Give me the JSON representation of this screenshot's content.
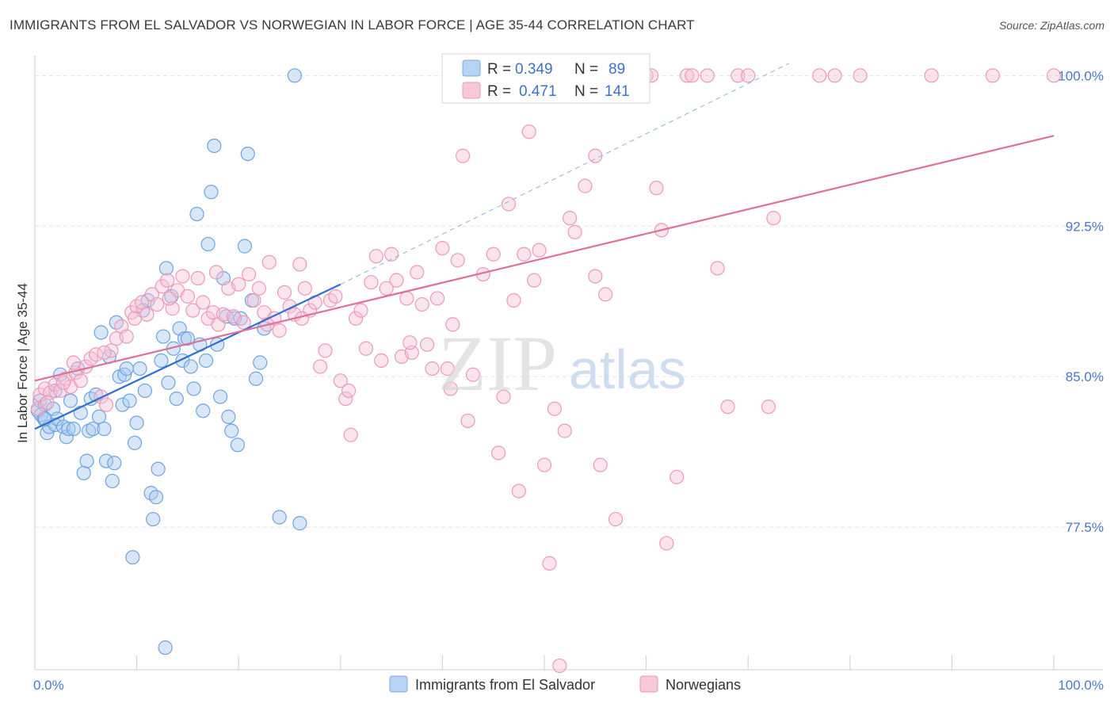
{
  "chart_data": {
    "type": "scatter",
    "title": "IMMIGRANTS FROM EL SALVADOR VS NORWEGIAN IN LABOR FORCE | AGE 35-44 CORRELATION CHART",
    "source": "Source: ZipAtlas.com",
    "xlabel": "",
    "ylabel": "In Labor Force | Age 35-44",
    "xlim": [
      0,
      100
    ],
    "ylim": [
      70.4,
      101.0
    ],
    "x_tick_labels": [
      "0.0%",
      "100.0%"
    ],
    "y_ticks": [
      77.5,
      85.0,
      92.5,
      100.0
    ],
    "y_tick_labels": [
      "77.5%",
      "85.0%",
      "92.5%",
      "100.0%"
    ],
    "grid": true,
    "watermark": "ZIPatlas",
    "stats": [
      {
        "series": "Immigrants from El Salvador",
        "r_label": "R =",
        "r": "0.349",
        "n_label": "N =",
        "n": "89"
      },
      {
        "series": "Norwegians",
        "r_label": "R =",
        "r": "0.471",
        "n_label": "N =",
        "n": "141"
      }
    ],
    "series": [
      {
        "name": "Immigrants from El Salvador",
        "color": "#6fa3e0",
        "fill": "#a9c9f0",
        "trend_color": "#2f6fd0",
        "trend": {
          "x0": 0,
          "y0": 82.4,
          "x1": 30,
          "y1": 89.6,
          "dashed_to_x": 74,
          "dashed_to_y": 100.6
        },
        "points": [
          [
            0.3,
            83.3
          ],
          [
            0.5,
            83.8
          ],
          [
            0.6,
            83.1
          ],
          [
            0.9,
            82.9
          ],
          [
            1.0,
            83.6
          ],
          [
            1.2,
            82.2
          ],
          [
            1.4,
            82.5
          ],
          [
            1.8,
            83.4
          ],
          [
            2.0,
            82.6
          ],
          [
            2.2,
            82.9
          ],
          [
            2.5,
            85.1
          ],
          [
            2.8,
            82.5
          ],
          [
            3.1,
            82.0
          ],
          [
            3.3,
            82.4
          ],
          [
            3.5,
            83.8
          ],
          [
            3.8,
            82.4
          ],
          [
            4.2,
            85.4
          ],
          [
            4.5,
            83.2
          ],
          [
            4.8,
            80.2
          ],
          [
            5.1,
            80.8
          ],
          [
            5.3,
            82.3
          ],
          [
            5.5,
            83.9
          ],
          [
            5.7,
            82.4
          ],
          [
            6.0,
            84.1
          ],
          [
            6.3,
            83.0
          ],
          [
            6.5,
            87.2
          ],
          [
            6.8,
            82.4
          ],
          [
            7.0,
            80.8
          ],
          [
            7.3,
            86.0
          ],
          [
            7.6,
            79.8
          ],
          [
            7.8,
            80.7
          ],
          [
            8.0,
            87.7
          ],
          [
            8.3,
            85.0
          ],
          [
            8.6,
            83.6
          ],
          [
            8.8,
            85.1
          ],
          [
            9.0,
            85.4
          ],
          [
            9.3,
            83.8
          ],
          [
            9.6,
            76.0
          ],
          [
            9.8,
            81.7
          ],
          [
            10.0,
            82.7
          ],
          [
            10.3,
            85.4
          ],
          [
            10.6,
            88.3
          ],
          [
            10.8,
            84.3
          ],
          [
            11.1,
            88.8
          ],
          [
            11.4,
            79.2
          ],
          [
            11.6,
            77.9
          ],
          [
            11.9,
            79.0
          ],
          [
            12.1,
            80.4
          ],
          [
            12.4,
            85.8
          ],
          [
            12.6,
            87.0
          ],
          [
            12.9,
            90.4
          ],
          [
            13.1,
            84.7
          ],
          [
            13.4,
            89.0
          ],
          [
            13.6,
            86.4
          ],
          [
            13.9,
            83.9
          ],
          [
            14.2,
            87.4
          ],
          [
            14.5,
            85.8
          ],
          [
            14.7,
            86.9
          ],
          [
            15.0,
            86.9
          ],
          [
            15.3,
            85.5
          ],
          [
            15.6,
            84.4
          ],
          [
            15.9,
            93.1
          ],
          [
            16.2,
            86.6
          ],
          [
            16.5,
            83.3
          ],
          [
            16.8,
            85.8
          ],
          [
            17.0,
            91.6
          ],
          [
            17.3,
            94.2
          ],
          [
            17.6,
            96.5
          ],
          [
            17.9,
            86.6
          ],
          [
            18.2,
            84.0
          ],
          [
            18.5,
            89.9
          ],
          [
            18.8,
            88.0
          ],
          [
            19.0,
            83.0
          ],
          [
            19.3,
            82.3
          ],
          [
            19.6,
            87.9
          ],
          [
            19.9,
            81.6
          ],
          [
            20.2,
            87.9
          ],
          [
            20.6,
            91.5
          ],
          [
            20.9,
            96.1
          ],
          [
            21.3,
            88.8
          ],
          [
            21.7,
            84.9
          ],
          [
            22.1,
            85.7
          ],
          [
            22.5,
            87.4
          ],
          [
            24.0,
            78.0
          ],
          [
            25.5,
            100.0
          ],
          [
            26.0,
            77.7
          ],
          [
            12.8,
            71.5
          ],
          [
            1.0,
            82.9
          ],
          [
            2.0,
            84.3
          ]
        ]
      },
      {
        "name": "Norwegians",
        "color": "#ec9ab6",
        "fill": "#f7c4d6",
        "trend_color": "#e0709a",
        "trend": {
          "x0": 0,
          "y0": 84.8,
          "x1": 100,
          "y1": 97.0
        },
        "points": [
          [
            0.5,
            84.1
          ],
          [
            1.0,
            84.4
          ],
          [
            1.5,
            84.2
          ],
          [
            2.0,
            84.6
          ],
          [
            2.5,
            84.3
          ],
          [
            3.0,
            84.9
          ],
          [
            3.5,
            84.5
          ],
          [
            4.0,
            85.2
          ],
          [
            4.5,
            84.8
          ],
          [
            5.0,
            85.5
          ],
          [
            5.5,
            85.9
          ],
          [
            6.0,
            86.1
          ],
          [
            6.5,
            84.0
          ],
          [
            7.0,
            83.6
          ],
          [
            7.5,
            86.3
          ],
          [
            8.0,
            86.9
          ],
          [
            8.5,
            87.5
          ],
          [
            9.0,
            87.0
          ],
          [
            9.5,
            88.2
          ],
          [
            10.0,
            88.5
          ],
          [
            10.5,
            88.7
          ],
          [
            11.0,
            88.1
          ],
          [
            11.5,
            89.1
          ],
          [
            12.0,
            88.6
          ],
          [
            12.5,
            89.5
          ],
          [
            13.0,
            89.8
          ],
          [
            13.5,
            88.4
          ],
          [
            14.0,
            89.3
          ],
          [
            14.5,
            90.0
          ],
          [
            15.0,
            89.0
          ],
          [
            15.5,
            88.3
          ],
          [
            16.0,
            89.9
          ],
          [
            16.5,
            88.7
          ],
          [
            17.0,
            87.9
          ],
          [
            17.5,
            88.2
          ],
          [
            18.0,
            87.6
          ],
          [
            18.5,
            88.1
          ],
          [
            19.0,
            89.4
          ],
          [
            19.5,
            88.0
          ],
          [
            20.0,
            89.6
          ],
          [
            20.5,
            87.7
          ],
          [
            21.0,
            90.1
          ],
          [
            21.5,
            88.8
          ],
          [
            22.0,
            89.4
          ],
          [
            22.5,
            88.2
          ],
          [
            23.0,
            90.7
          ],
          [
            23.5,
            87.9
          ],
          [
            24.0,
            87.3
          ],
          [
            24.5,
            89.2
          ],
          [
            25.0,
            88.5
          ],
          [
            25.5,
            88.1
          ],
          [
            26.0,
            90.6
          ],
          [
            26.5,
            89.4
          ],
          [
            27.0,
            88.3
          ],
          [
            27.5,
            88.7
          ],
          [
            28.0,
            85.5
          ],
          [
            28.5,
            86.3
          ],
          [
            29.0,
            88.8
          ],
          [
            29.5,
            89.0
          ],
          [
            30.0,
            84.8
          ],
          [
            30.5,
            83.9
          ],
          [
            31.0,
            82.1
          ],
          [
            31.5,
            87.9
          ],
          [
            32.0,
            88.3
          ],
          [
            32.5,
            86.4
          ],
          [
            33.0,
            89.7
          ],
          [
            33.5,
            91.0
          ],
          [
            34.0,
            85.8
          ],
          [
            34.5,
            89.4
          ],
          [
            35.0,
            91.1
          ],
          [
            35.5,
            89.8
          ],
          [
            36.0,
            86.0
          ],
          [
            36.5,
            88.9
          ],
          [
            37.0,
            86.2
          ],
          [
            37.5,
            90.2
          ],
          [
            38.0,
            88.6
          ],
          [
            38.5,
            86.6
          ],
          [
            39.0,
            85.4
          ],
          [
            39.5,
            88.9
          ],
          [
            40.0,
            91.4
          ],
          [
            40.5,
            85.4
          ],
          [
            41.0,
            87.6
          ],
          [
            41.5,
            90.8
          ],
          [
            42.0,
            96.0
          ],
          [
            42.5,
            82.8
          ],
          [
            43.0,
            85.1
          ],
          [
            44.0,
            90.1
          ],
          [
            45.0,
            91.1
          ],
          [
            45.5,
            81.2
          ],
          [
            46.0,
            84.0
          ],
          [
            46.5,
            93.6
          ],
          [
            47.0,
            88.8
          ],
          [
            47.5,
            79.3
          ],
          [
            48.0,
            91.1
          ],
          [
            48.5,
            97.2
          ],
          [
            49.0,
            89.8
          ],
          [
            49.5,
            91.3
          ],
          [
            50.0,
            80.6
          ],
          [
            50.5,
            75.7
          ],
          [
            51.0,
            83.4
          ],
          [
            51.5,
            70.6
          ],
          [
            52.0,
            82.3
          ],
          [
            52.5,
            92.9
          ],
          [
            53.0,
            92.2
          ],
          [
            54.0,
            94.5
          ],
          [
            55.0,
            96.0
          ],
          [
            55.5,
            80.6
          ],
          [
            56.0,
            89.1
          ],
          [
            57.0,
            77.9
          ],
          [
            58.0,
            100.0
          ],
          [
            60.0,
            100.0
          ],
          [
            61.0,
            94.4
          ],
          [
            61.5,
            92.3
          ],
          [
            62.0,
            76.7
          ],
          [
            63.0,
            80.0
          ],
          [
            64.0,
            100.0
          ],
          [
            64.5,
            100.0
          ],
          [
            66.0,
            100.0
          ],
          [
            67.0,
            90.4
          ],
          [
            68.0,
            83.5
          ],
          [
            69.0,
            100.0
          ],
          [
            70.0,
            100.0
          ],
          [
            72.0,
            83.5
          ],
          [
            72.5,
            92.9
          ],
          [
            77.0,
            100.0
          ],
          [
            78.5,
            100.0
          ],
          [
            81.0,
            100.0
          ],
          [
            88.0,
            100.0
          ],
          [
            94.0,
            100.0
          ],
          [
            100.0,
            100.0
          ],
          [
            0.3,
            83.4
          ],
          [
            1.2,
            83.7
          ],
          [
            2.8,
            84.7
          ],
          [
            3.8,
            85.7
          ],
          [
            6.8,
            86.2
          ],
          [
            9.8,
            87.9
          ],
          [
            13.2,
            88.9
          ],
          [
            17.8,
            90.2
          ],
          [
            22.8,
            87.6
          ],
          [
            26.2,
            87.9
          ],
          [
            30.8,
            84.3
          ],
          [
            36.8,
            86.7
          ],
          [
            40.8,
            84.4
          ],
          [
            55.0,
            90.0
          ],
          [
            60.5,
            100.0
          ]
        ]
      }
    ]
  },
  "legend": {
    "items": [
      {
        "label": "Immigrants from El Salvador",
        "swatch": "#b7d3f3",
        "border": "#7eaae0"
      },
      {
        "label": "Norwegians",
        "swatch": "#f7c9d8",
        "border": "#e79ab5"
      }
    ]
  }
}
